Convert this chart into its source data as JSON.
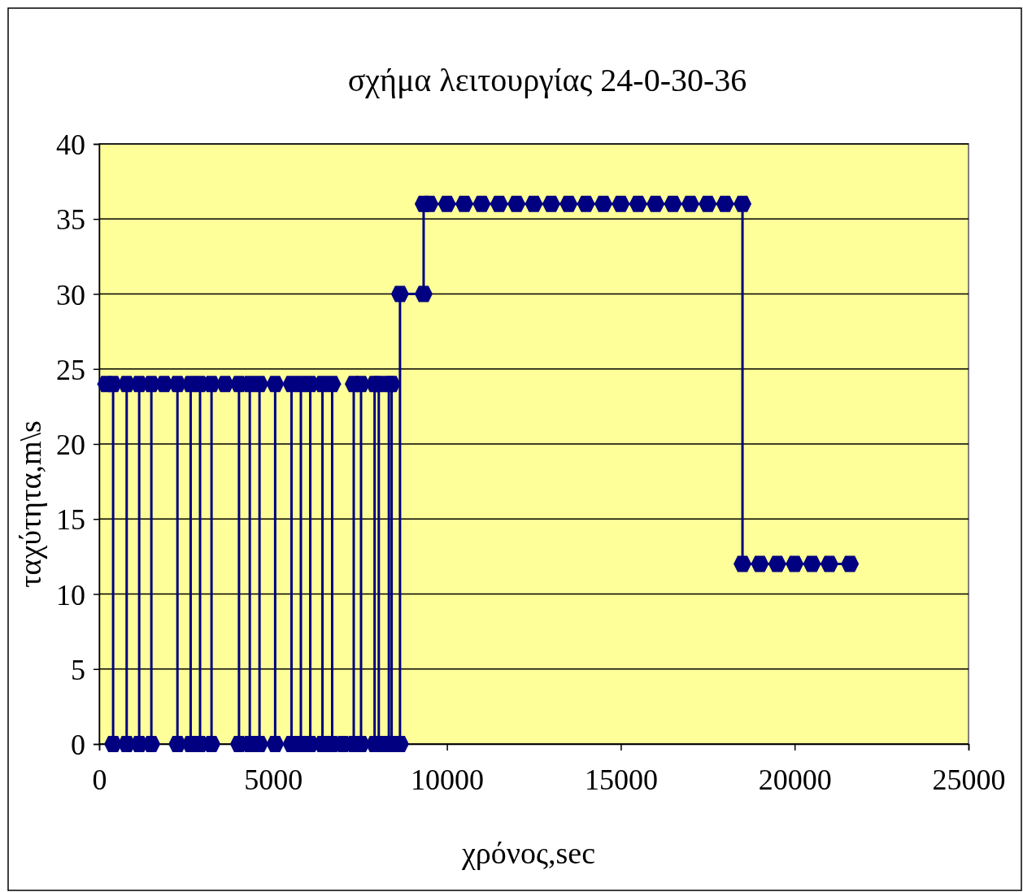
{
  "chart_data": {
    "type": "line",
    "title": "σχήμα λειτουργίας 24-0-30-36",
    "xlabel": "χρόνος,sec",
    "ylabel": "ταχύτητα,m\\s",
    "xlim": [
      0,
      25000
    ],
    "xticks": [
      0,
      5000,
      10000,
      15000,
      20000,
      25000
    ],
    "ylim": [
      0,
      40
    ],
    "yticks": [
      0,
      5,
      10,
      15,
      20,
      25,
      30,
      35,
      40
    ],
    "grid": "y",
    "marker": "diamond",
    "line_style": "solid",
    "series": [
      {
        "color": "#000080",
        "x": [
          200,
          400,
          400,
          790,
          790,
          1150,
          1150,
          1500,
          1500,
          1870,
          2250,
          2250,
          2630,
          2630,
          2900,
          2900,
          3230,
          3230,
          3620,
          4020,
          4020,
          4330,
          4330,
          4610,
          4610,
          5060,
          5060,
          5530,
          5530,
          5800,
          5800,
          6070,
          6070,
          6420,
          6420,
          6700,
          6700,
          7010,
          7320,
          7320,
          7530,
          7530,
          7920,
          7920,
          8040,
          8040,
          8330,
          8330,
          8410,
          8410,
          8650,
          8650,
          9330,
          9330,
          9500,
          10000,
          10500,
          11000,
          11500,
          12000,
          12500,
          13000,
          13500,
          14000,
          14500,
          15000,
          15500,
          16000,
          16500,
          17000,
          17500,
          18000,
          18500,
          18500,
          19000,
          19500,
          20000,
          20500,
          21000,
          21590
        ],
        "values": [
          24,
          24,
          0,
          0,
          24,
          24,
          0,
          0,
          24,
          24,
          24,
          0,
          0,
          24,
          24,
          0,
          0,
          24,
          24,
          24,
          0,
          0,
          24,
          24,
          0,
          0,
          24,
          24,
          0,
          0,
          24,
          24,
          0,
          0,
          24,
          24,
          0,
          0,
          0,
          24,
          24,
          0,
          0,
          24,
          24,
          0,
          0,
          24,
          24,
          0,
          0,
          30,
          30,
          36,
          36,
          36,
          36,
          36,
          36,
          36,
          36,
          36,
          36,
          36,
          36,
          36,
          36,
          36,
          36,
          36,
          36,
          36,
          36,
          12,
          12,
          12,
          12,
          12,
          12,
          12
        ]
      }
    ]
  }
}
